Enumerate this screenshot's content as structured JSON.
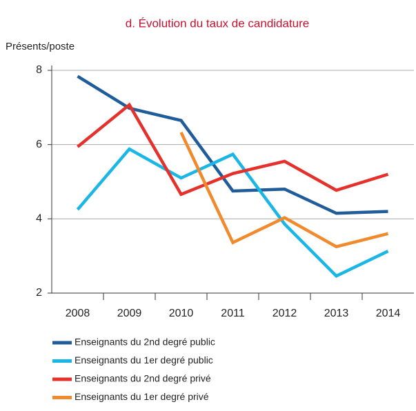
{
  "chart_data": {
    "type": "line",
    "title": "d. Évolution du taux de candidature",
    "y_label": "Présents/poste",
    "categories": [
      "2008",
      "2009",
      "2010",
      "2011",
      "2012",
      "2013",
      "2014"
    ],
    "series": [
      {
        "name": "Enseignants du 2nd degré public",
        "color": "#1f5c99",
        "values": [
          7.84,
          6.98,
          6.65,
          4.75,
          4.8,
          4.15,
          4.2
        ]
      },
      {
        "name": "Enseignants du 1er degré public",
        "color": "#1ab6e6",
        "values": [
          4.25,
          5.88,
          5.1,
          5.74,
          3.86,
          2.46,
          3.13
        ]
      },
      {
        "name": "Enseignants du 2nd degré privé",
        "color": "#e4312b",
        "values": [
          5.94,
          7.07,
          4.66,
          5.22,
          5.55,
          4.77,
          5.2
        ]
      },
      {
        "name": "Enseignants du 1er degré privé",
        "color": "#f08a2c",
        "values": [
          null,
          null,
          6.33,
          3.36,
          4.03,
          3.25,
          3.6
        ]
      }
    ],
    "ylim": [
      2,
      8
    ],
    "yticks": [
      2,
      4,
      6,
      8
    ],
    "grid": true
  }
}
